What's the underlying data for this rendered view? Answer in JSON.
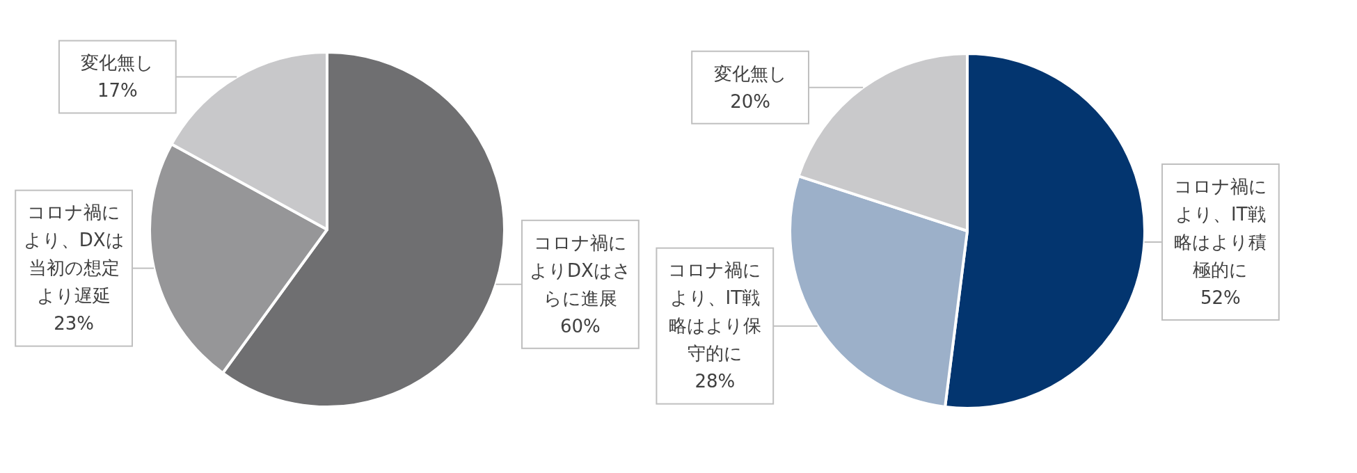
{
  "chart_data": [
    {
      "type": "pie",
      "categories": [
        "コロナ禍によりDXはさらに進展",
        "コロナ禍により、DXは当初の想定より遅延",
        "変化無し"
      ],
      "values": [
        60,
        23,
        17
      ],
      "colors": [
        "#6f6f71",
        "#969698",
        "#c8c8ca"
      ],
      "value_labels": [
        "60%",
        "23%",
        "17%"
      ]
    },
    {
      "type": "pie",
      "categories": [
        "コロナ禍により、IT戦略はより積極的に",
        "コロナ禍により、IT戦略はより保守的に",
        "変化無し"
      ],
      "values": [
        52,
        28,
        20
      ],
      "colors": [
        "#03356f",
        "#9cb0c9",
        "#c9c9cb"
      ],
      "value_labels": [
        "52%",
        "28%",
        "20%"
      ]
    }
  ]
}
